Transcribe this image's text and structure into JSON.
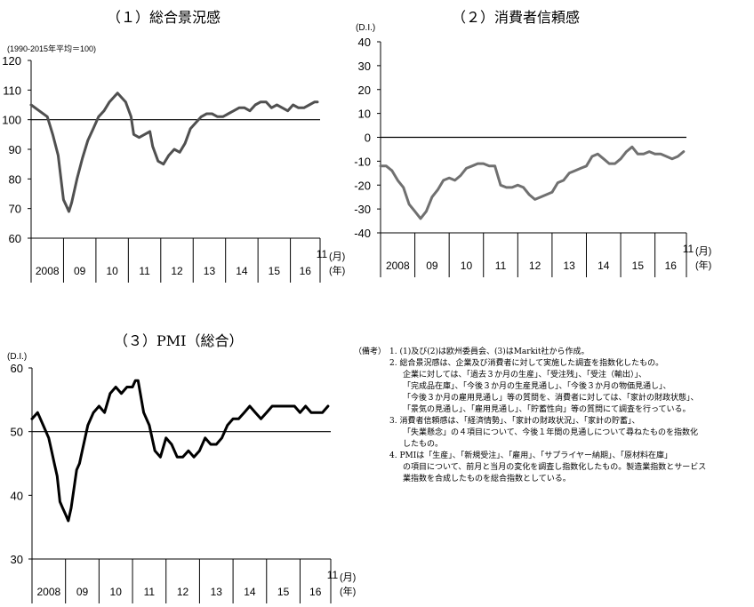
{
  "chart_data": [
    {
      "type": "line",
      "title": "（１）総合景況感",
      "ylabel": "(1990-2015年平均＝100)",
      "ylim": [
        60,
        120
      ],
      "yticks": [
        60,
        70,
        80,
        90,
        100,
        110,
        120
      ],
      "reference_line": 100,
      "x_year_labels": [
        "2008",
        "09",
        "10",
        "11",
        "12",
        "13",
        "14",
        "15",
        "16"
      ],
      "x_end_month": "11",
      "x_unit_month": "(月)",
      "x_unit_year": "(年)",
      "x": [
        "2008-01",
        "2008-04",
        "2008-07",
        "2008-09",
        "2008-11",
        "2009-01",
        "2009-02",
        "2009-03",
        "2009-04",
        "2009-06",
        "2009-08",
        "2009-10",
        "2009-12",
        "2010-02",
        "2010-04",
        "2010-06",
        "2010-09",
        "2010-12",
        "2011-02",
        "2011-03",
        "2011-05",
        "2011-07",
        "2011-09",
        "2011-10",
        "2011-12",
        "2012-02",
        "2012-04",
        "2012-06",
        "2012-08",
        "2012-10",
        "2012-12",
        "2013-02",
        "2013-04",
        "2013-06",
        "2013-08",
        "2013-10",
        "2013-12",
        "2014-02",
        "2014-04",
        "2014-06",
        "2014-08",
        "2014-10",
        "2014-12",
        "2015-02",
        "2015-04",
        "2015-06",
        "2015-08",
        "2015-10",
        "2015-12",
        "2016-02",
        "2016-04",
        "2016-06",
        "2016-08",
        "2016-10",
        "2016-11"
      ],
      "series": [
        {
          "values": [
            105,
            103,
            101,
            95,
            88,
            73,
            71,
            69,
            72,
            80,
            87,
            93,
            97,
            101,
            103,
            106,
            109,
            106,
            101,
            95,
            94,
            95,
            96,
            91,
            86,
            85,
            88,
            90,
            89,
            92,
            97,
            99,
            101,
            102,
            102,
            101,
            101,
            102,
            103,
            104,
            104,
            103,
            105,
            106,
            106,
            104,
            105,
            104,
            103,
            105,
            104,
            104,
            105,
            106,
            106
          ]
        }
      ]
    },
    {
      "type": "line",
      "title": "（２）消費者信頼感",
      "ylabel": "(D.I.)",
      "ylim": [
        -40,
        40
      ],
      "yticks": [
        -40,
        -30,
        -20,
        -10,
        0,
        10,
        20,
        30,
        40
      ],
      "reference_line": 0,
      "x_year_labels": [
        "2008",
        "09",
        "10",
        "11",
        "12",
        "13",
        "14",
        "15",
        "16"
      ],
      "x_end_month": "11",
      "x_unit_month": "(月)",
      "x_unit_year": "(年)",
      "x": [
        "2008-01",
        "2008-03",
        "2008-05",
        "2008-07",
        "2008-09",
        "2008-11",
        "2009-01",
        "2009-03",
        "2009-05",
        "2009-07",
        "2009-09",
        "2009-11",
        "2010-01",
        "2010-03",
        "2010-05",
        "2010-07",
        "2010-09",
        "2010-11",
        "2011-01",
        "2011-03",
        "2011-05",
        "2011-07",
        "2011-09",
        "2011-11",
        "2012-01",
        "2012-03",
        "2012-05",
        "2012-07",
        "2012-09",
        "2012-11",
        "2013-01",
        "2013-03",
        "2013-05",
        "2013-07",
        "2013-09",
        "2013-11",
        "2014-01",
        "2014-03",
        "2014-05",
        "2014-07",
        "2014-09",
        "2014-11",
        "2015-01",
        "2015-03",
        "2015-05",
        "2015-07",
        "2015-09",
        "2015-11",
        "2016-01",
        "2016-03",
        "2016-05",
        "2016-07",
        "2016-09",
        "2016-11"
      ],
      "series": [
        {
          "values": [
            -12,
            -12,
            -14,
            -18,
            -21,
            -28,
            -31,
            -34,
            -31,
            -25,
            -22,
            -18,
            -17,
            -18,
            -16,
            -13,
            -12,
            -11,
            -11,
            -12,
            -12,
            -20,
            -21,
            -21,
            -20,
            -21,
            -24,
            -26,
            -25,
            -24,
            -23,
            -19,
            -18,
            -15,
            -14,
            -13,
            -12,
            -8,
            -7,
            -9,
            -11,
            -11,
            -9,
            -6,
            -4,
            -7,
            -7,
            -6,
            -7,
            -7,
            -8,
            -9,
            -8,
            -6
          ]
        }
      ]
    },
    {
      "type": "line",
      "title": "（３）PMI（総合）",
      "ylabel": "(D.I.)",
      "ylim": [
        30,
        60
      ],
      "yticks": [
        30,
        40,
        50,
        60
      ],
      "reference_line": 50,
      "x_year_labels": [
        "2008",
        "09",
        "10",
        "11",
        "12",
        "13",
        "14",
        "15",
        "16"
      ],
      "x_end_month": "11",
      "x_unit_month": "(月)",
      "x_unit_year": "(年)",
      "x": [
        "2008-01",
        "2008-03",
        "2008-05",
        "2008-07",
        "2008-08",
        "2008-09",
        "2008-10",
        "2008-11",
        "2008-12",
        "2009-01",
        "2009-02",
        "2009-03",
        "2009-04",
        "2009-05",
        "2009-06",
        "2009-07",
        "2009-09",
        "2009-11",
        "2010-01",
        "2010-03",
        "2010-05",
        "2010-07",
        "2010-09",
        "2010-11",
        "2011-01",
        "2011-02",
        "2011-03",
        "2011-05",
        "2011-07",
        "2011-09",
        "2011-11",
        "2012-01",
        "2012-03",
        "2012-05",
        "2012-07",
        "2012-09",
        "2012-11",
        "2013-01",
        "2013-03",
        "2013-05",
        "2013-07",
        "2013-09",
        "2013-11",
        "2014-01",
        "2014-03",
        "2014-05",
        "2014-07",
        "2014-09",
        "2014-11",
        "2015-01",
        "2015-03",
        "2015-05",
        "2015-07",
        "2015-09",
        "2015-11",
        "2016-01",
        "2016-03",
        "2016-05",
        "2016-07",
        "2016-09",
        "2016-11"
      ],
      "series": [
        {
          "values": [
            52,
            53,
            51,
            49,
            47,
            45,
            43,
            39,
            38,
            37,
            36,
            38,
            41,
            44,
            45,
            47,
            51,
            53,
            54,
            53,
            56,
            57,
            56,
            57,
            57,
            58,
            58,
            53,
            51,
            47,
            46,
            49,
            48,
            46,
            46,
            47,
            46,
            47,
            49,
            48,
            48,
            49,
            51,
            52,
            52,
            53,
            54,
            53,
            52,
            53,
            54,
            54,
            54,
            54,
            54,
            53,
            54,
            53,
            53,
            53,
            54
          ]
        }
      ]
    }
  ],
  "notes": {
    "head": "（備考）",
    "items": [
      {
        "num": "1.",
        "lines": [
          "(1)及び(2)は欧州委員会、(3)はMarkit社から作成。"
        ]
      },
      {
        "num": "2.",
        "lines": [
          "総合景況感は、企業及び消費者に対して実施した調査を指数化したもの。",
          "企業に対しては、「過去３か月の生産」、「受注残」、「受注（輸出）」、",
          "「完成品在庫」、「今後３か月の生産見通し」、「今後３か月の物価見通し」、",
          "「今後３か月の雇用見通し」等の質問を、消費者に対しては、「家計の財政状態」、",
          "「景気の見通し」、「雇用見通し」、「貯蓄性向」等の質問にて調査を行っている。"
        ]
      },
      {
        "num": "3.",
        "lines": [
          "消費者信頼感は、「経済情勢」、「家計の財政状況」、「家計の貯蓄」、",
          "「失業懸念」の４項目について、今後１年間の見通しについて尋ねたものを指数化",
          "したもの。"
        ]
      },
      {
        "num": "4.",
        "lines": [
          "PMIは「生産」、「新規受注」、「雇用」、「サプライヤー納期」、「原材料在庫」",
          "の項目について、前月と当月の変化を調査し指数化したもの。製造業指数とサービス",
          "業指数を合成したものを総合指数としている。"
        ]
      }
    ]
  }
}
